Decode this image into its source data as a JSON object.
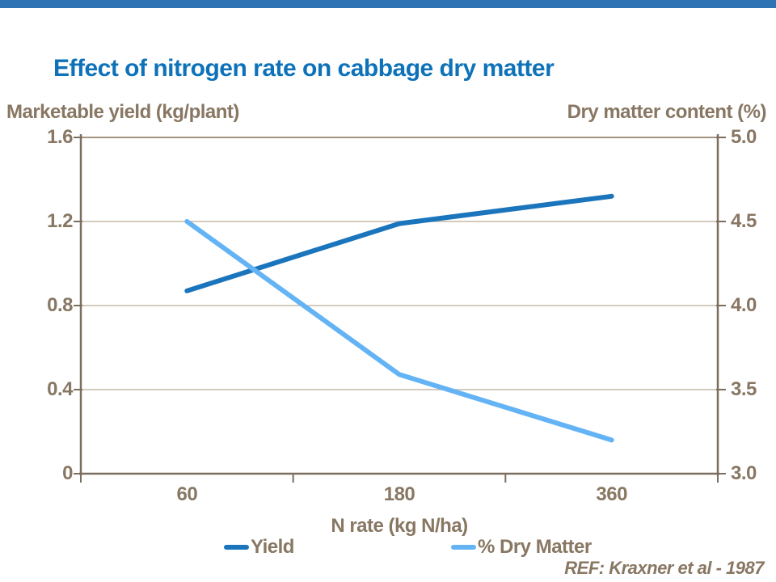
{
  "title": "Effect of nitrogen rate on cabbage dry matter",
  "ref": "REF: Kraxner et al - 1987",
  "colors": {
    "top_bar": "#2E74B5",
    "title_text": "#0E72B9",
    "label_text": "#887763",
    "axis_line": "#7C6E5E",
    "plot_top_border": "#A3947F",
    "gridline": "#C6BAA8"
  },
  "chart_data": {
    "type": "line",
    "title": "Effect of nitrogen rate on cabbage dry matter",
    "x_categories": [
      "60",
      "180",
      "360"
    ],
    "xlabel": "N rate (kg N/ha)",
    "grid": "horizontal",
    "legend_position": "bottom",
    "left_axis": {
      "label": "Marketable yield (kg/plant)",
      "ticks": [
        "1.6",
        "1.2",
        "0.8",
        "0.4",
        "0"
      ],
      "range": [
        0,
        1.6
      ]
    },
    "right_axis": {
      "label": "Dry matter content (%)",
      "ticks": [
        "5.0",
        "4.5",
        "4.0",
        "3.5",
        "3.0"
      ],
      "range": [
        3.0,
        5.0
      ]
    },
    "series": [
      {
        "name": "Yield",
        "axis": "left",
        "color": "#1B75BC",
        "values": [
          0.87,
          1.19,
          1.32
        ]
      },
      {
        "name": "% Dry Matter",
        "axis": "right",
        "color": "#64B4F5",
        "values": [
          4.5,
          3.59,
          3.2
        ]
      }
    ]
  }
}
